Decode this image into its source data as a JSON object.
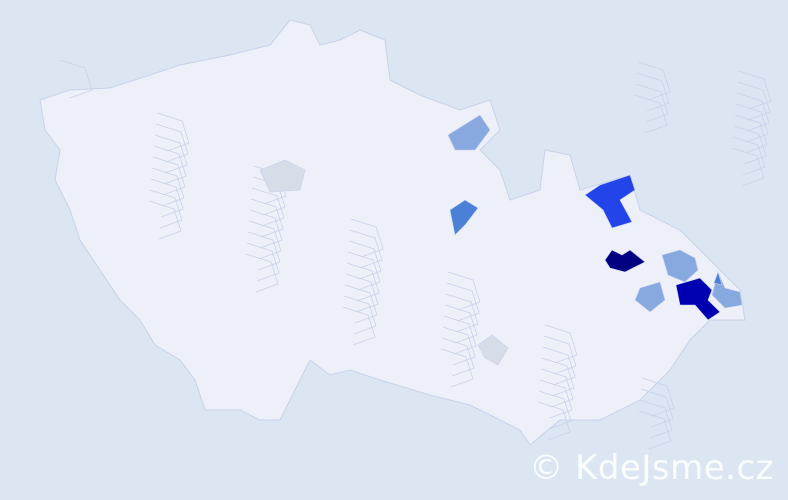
{
  "watermark": "© KdeJsme.cz",
  "colors": {
    "background": "#dce6f2",
    "district": "#edf0f8",
    "district_border": "#c8d2ea",
    "level_navy": "#000080",
    "level_dark_blue": "#0000b0",
    "level_bright_blue": "#2244e8",
    "level_mid_blue": "#4a80d8",
    "level_light_blue": "#88a8e0",
    "level_grey": "#d6dce8"
  },
  "highlighted_districts": [
    {
      "level": "level_light_blue"
    },
    {
      "level": "level_grey"
    },
    {
      "level": "level_mid_blue"
    },
    {
      "level": "level_bright_blue"
    },
    {
      "level": "level_navy"
    },
    {
      "level": "level_light_blue"
    },
    {
      "level": "level_dark_blue"
    },
    {
      "level": "level_light_blue"
    },
    {
      "level": "level_light_blue"
    },
    {
      "level": "level_mid_blue"
    },
    {
      "level": "level_grey"
    }
  ]
}
